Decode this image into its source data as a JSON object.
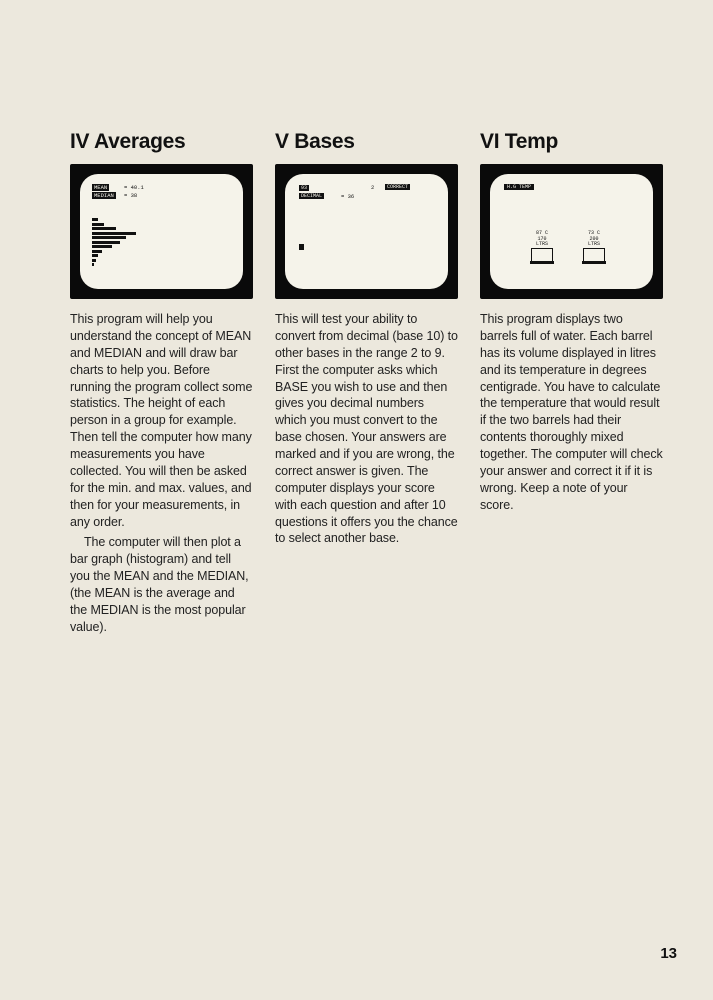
{
  "page_number": "13",
  "columns": [
    {
      "heading": "IV Averages",
      "screen": {
        "type": "averages",
        "label1": "MEAN",
        "value1": "= 40.1",
        "label2": "MEDIAN",
        "value2": "= 38",
        "bars": [
          6,
          12,
          24,
          44,
          34,
          28,
          20,
          10,
          6,
          4,
          2
        ]
      },
      "paragraphs": [
        "This program will help you understand the concept of MEAN and MEDIAN and will draw bar charts to help you. Before running the program collect some statistics. The height of each person in a group for example. Then tell the computer how many measurements you have collected. You will then be asked for the min. and max. values, and then for your measurements, in any order.",
        "The computer will then plot a bar graph (histogram) and tell you the MEAN and the MEDIAN, (the MEAN is the average and the MEDIAN is the most popular value)."
      ]
    },
    {
      "heading": "V Bases",
      "screen": {
        "type": "bases",
        "left1": "93",
        "right1_num": "2",
        "right1": "CORRECT",
        "left2": "DECIMAL",
        "value2": "= 36"
      },
      "paragraphs": [
        "This will test your ability to convert from decimal (base 10) to other bases in the range 2 to 9. First the computer asks which BASE you wish to use and then gives you decimal numbers which you must convert to the base chosen. Your answers are marked and if you are wrong, the correct answer is given. The computer displays your score with each question and after 10 questions it offers you the chance to select another base."
      ]
    },
    {
      "heading": "VI Temp",
      "screen": {
        "type": "temp",
        "title": "H.G TEMP",
        "barrel1_top": "87 C",
        "barrel1_mid": "170\nLTRS",
        "barrel2_top": "73 C",
        "barrel2_mid": "200\nLTRS"
      },
      "paragraphs": [
        "This program displays two barrels full of water. Each barrel has its volume displayed in litres and its temperature in degrees centigrade. You have to calculate the temperature that would result if the two barrels had their contents thoroughly mixed together. The computer will check your answer and correct it if it is wrong. Keep a note of your score."
      ]
    }
  ]
}
